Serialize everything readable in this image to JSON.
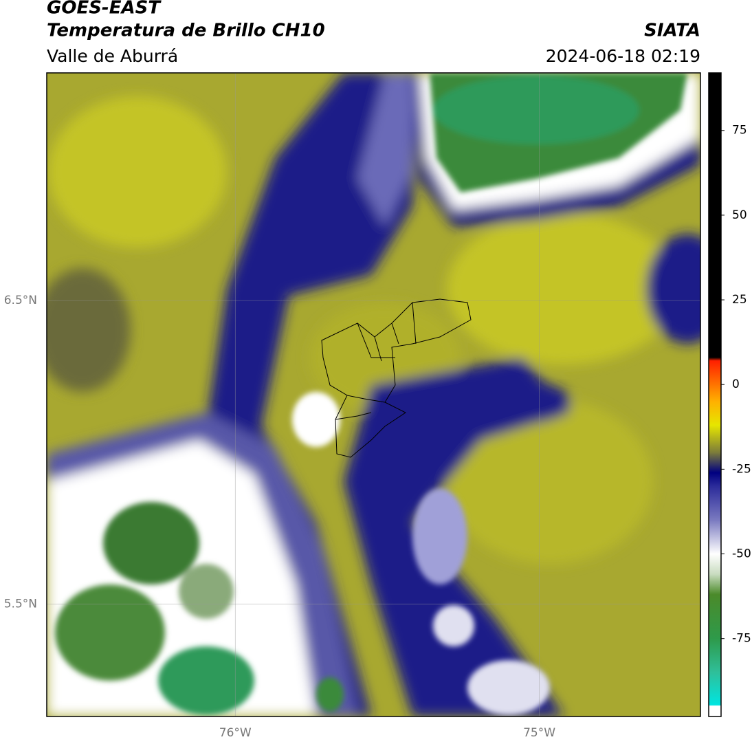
{
  "header": {
    "title": "GOES-EAST",
    "subtitle": "Temperatura de Brillo CH10",
    "region": "Valle de Aburrá",
    "source": "SIATA",
    "timestamp": "2024-06-18 02:19"
  },
  "map": {
    "lon_range": [
      -76.62,
      -74.47
    ],
    "lat_range": [
      5.13,
      7.25
    ],
    "lon_ticks": [
      {
        "value": -76,
        "label": "76°W"
      },
      {
        "value": -75,
        "label": "75°W"
      }
    ],
    "lat_ticks": [
      {
        "value": 6.5,
        "label": "6.5°N"
      },
      {
        "value": 5.5,
        "label": "5.5°N"
      }
    ]
  },
  "colorbar": {
    "range": [
      -98,
      92
    ],
    "ticks": [
      75,
      50,
      25,
      0,
      -25,
      -50,
      -75
    ],
    "stops": [
      {
        "value": -98,
        "color": "#ffffff"
      },
      {
        "value": -95,
        "color": "#ffffff"
      },
      {
        "value": -94.5,
        "color": "#00e5e0"
      },
      {
        "value": -85,
        "color": "#2fbf9a"
      },
      {
        "value": -75,
        "color": "#2e9a4a"
      },
      {
        "value": -62,
        "color": "#4b8a2a"
      },
      {
        "value": -56,
        "color": "#c9dcc0"
      },
      {
        "value": -50,
        "color": "#ffffff"
      },
      {
        "value": -40,
        "color": "#7a7ac0"
      },
      {
        "value": -30,
        "color": "#2b2b9a"
      },
      {
        "value": -26,
        "color": "#000080"
      },
      {
        "value": -20,
        "color": "#7d7d3a"
      },
      {
        "value": -12,
        "color": "#e6e600"
      },
      {
        "value": -5,
        "color": "#ffb000"
      },
      {
        "value": 7,
        "color": "#ff2000"
      },
      {
        "value": 8,
        "color": "#000000"
      },
      {
        "value": 92,
        "color": "#000000"
      }
    ]
  }
}
